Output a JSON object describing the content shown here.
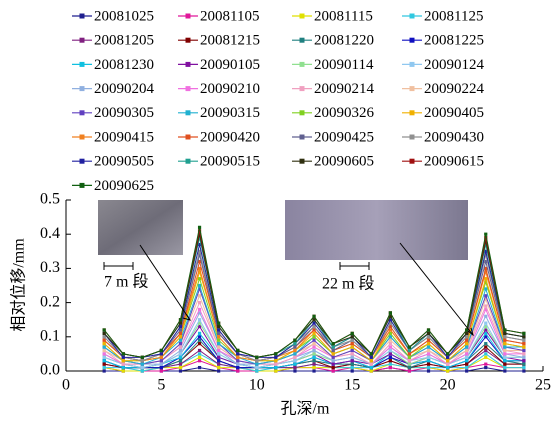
{
  "chart_data": {
    "type": "line",
    "x_label": "孔深/m",
    "y_label": "相对位移/mm",
    "annotations": [
      "7 m 段",
      "22 m 段"
    ],
    "x": [
      2,
      3,
      4,
      5,
      6,
      7,
      8,
      9,
      10,
      11,
      12,
      13,
      14,
      15,
      16,
      17,
      18,
      19,
      20,
      21,
      22,
      23,
      24
    ],
    "xlim": [
      0,
      25
    ],
    "xticks": [
      0,
      5,
      10,
      15,
      20,
      25
    ],
    "ylim": [
      0,
      0.5
    ],
    "yticks": [
      {
        "value": 0,
        "label": "0.0"
      },
      0.1,
      0.2,
      0.3,
      0.4,
      0.5
    ],
    "series": [
      {
        "name": "20081025",
        "color": "#1f1f8f",
        "values": [
          0,
          0,
          0,
          0,
          0,
          0.01,
          0,
          0,
          0,
          0,
          0,
          0,
          0,
          0,
          0,
          0.01,
          0,
          0,
          0,
          0,
          0.01,
          0,
          0
        ]
      },
      {
        "name": "20081105",
        "color": "#e0189a",
        "values": [
          0.01,
          0,
          0,
          0,
          0.01,
          0.03,
          0.01,
          0,
          0,
          0,
          0.01,
          0.01,
          0,
          0.01,
          0,
          0.01,
          0,
          0.01,
          0,
          0.01,
          0.02,
          0.01,
          0.01
        ]
      },
      {
        "name": "20081115",
        "color": "#e0e000",
        "values": [
          0.01,
          0,
          0,
          0.01,
          0.01,
          0.04,
          0.01,
          0.01,
          0,
          0,
          0.01,
          0.01,
          0.01,
          0.01,
          0,
          0.02,
          0.01,
          0.01,
          0,
          0.01,
          0.04,
          0.01,
          0.01
        ]
      },
      {
        "name": "20081125",
        "color": "#30c8e0",
        "values": [
          0.01,
          0.01,
          0,
          0.01,
          0.02,
          0.05,
          0.02,
          0.01,
          0,
          0.01,
          0.01,
          0.02,
          0.01,
          0.01,
          0.01,
          0.02,
          0.01,
          0.01,
          0.01,
          0.01,
          0.05,
          0.01,
          0.01
        ]
      },
      {
        "name": "20081205",
        "color": "#802080",
        "values": [
          0.02,
          0.01,
          0.01,
          0.01,
          0.02,
          0.06,
          0.02,
          0.01,
          0.01,
          0.01,
          0.01,
          0.02,
          0.01,
          0.02,
          0.01,
          0.03,
          0.01,
          0.02,
          0.01,
          0.02,
          0.06,
          0.02,
          0.02
        ]
      },
      {
        "name": "20081215",
        "color": "#800000",
        "values": [
          0.02,
          0.01,
          0.01,
          0.01,
          0.03,
          0.08,
          0.03,
          0.01,
          0.01,
          0.01,
          0.02,
          0.03,
          0.01,
          0.02,
          0.01,
          0.03,
          0.01,
          0.02,
          0.01,
          0.02,
          0.07,
          0.02,
          0.02
        ]
      },
      {
        "name": "20081220",
        "color": "#208080",
        "values": [
          0.03,
          0.01,
          0.01,
          0.01,
          0.03,
          0.09,
          0.03,
          0.01,
          0.01,
          0.01,
          0.02,
          0.03,
          0.02,
          0.02,
          0.01,
          0.04,
          0.01,
          0.03,
          0.01,
          0.03,
          0.08,
          0.03,
          0.02
        ]
      },
      {
        "name": "20081225",
        "color": "#1010c0",
        "values": [
          0.03,
          0.01,
          0.01,
          0.01,
          0.04,
          0.1,
          0.03,
          0.01,
          0.01,
          0.01,
          0.02,
          0.04,
          0.02,
          0.03,
          0.01,
          0.04,
          0.02,
          0.03,
          0.01,
          0.03,
          0.1,
          0.03,
          0.03
        ]
      },
      {
        "name": "20081230",
        "color": "#10c0e0",
        "values": [
          0.03,
          0.01,
          0.01,
          0.02,
          0.04,
          0.11,
          0.04,
          0.02,
          0.01,
          0.01,
          0.02,
          0.04,
          0.02,
          0.03,
          0.01,
          0.05,
          0.02,
          0.03,
          0.01,
          0.03,
          0.11,
          0.03,
          0.03
        ]
      },
      {
        "name": "20090105",
        "color": "#8010a0",
        "values": [
          0.04,
          0.02,
          0.01,
          0.02,
          0.05,
          0.13,
          0.04,
          0.02,
          0.01,
          0.02,
          0.03,
          0.05,
          0.02,
          0.03,
          0.02,
          0.05,
          0.02,
          0.04,
          0.02,
          0.04,
          0.12,
          0.04,
          0.03
        ]
      },
      {
        "name": "20090114",
        "color": "#90e090",
        "values": [
          0.04,
          0.02,
          0.01,
          0.02,
          0.05,
          0.14,
          0.05,
          0.02,
          0.01,
          0.02,
          0.03,
          0.05,
          0.03,
          0.04,
          0.02,
          0.06,
          0.02,
          0.04,
          0.02,
          0.04,
          0.13,
          0.04,
          0.04
        ]
      },
      {
        "name": "20090124",
        "color": "#90c8f0",
        "values": [
          0.04,
          0.02,
          0.01,
          0.02,
          0.05,
          0.15,
          0.05,
          0.02,
          0.01,
          0.02,
          0.03,
          0.06,
          0.03,
          0.04,
          0.02,
          0.06,
          0.03,
          0.04,
          0.02,
          0.04,
          0.14,
          0.04,
          0.04
        ]
      },
      {
        "name": "20090204",
        "color": "#90b0e0",
        "values": [
          0.05,
          0.02,
          0.02,
          0.02,
          0.06,
          0.17,
          0.06,
          0.02,
          0.02,
          0.02,
          0.04,
          0.06,
          0.03,
          0.04,
          0.02,
          0.07,
          0.03,
          0.05,
          0.02,
          0.05,
          0.16,
          0.05,
          0.04
        ]
      },
      {
        "name": "20090210",
        "color": "#f070e0",
        "values": [
          0.05,
          0.02,
          0.02,
          0.03,
          0.07,
          0.18,
          0.06,
          0.03,
          0.02,
          0.02,
          0.04,
          0.07,
          0.04,
          0.05,
          0.02,
          0.07,
          0.03,
          0.05,
          0.02,
          0.05,
          0.18,
          0.05,
          0.05
        ]
      },
      {
        "name": "20090214",
        "color": "#f0a0c0",
        "values": [
          0.06,
          0.02,
          0.02,
          0.03,
          0.07,
          0.2,
          0.07,
          0.03,
          0.02,
          0.02,
          0.04,
          0.08,
          0.04,
          0.05,
          0.02,
          0.08,
          0.03,
          0.06,
          0.02,
          0.06,
          0.19,
          0.06,
          0.05
        ]
      },
      {
        "name": "20090224",
        "color": "#f0c0a0",
        "values": [
          0.06,
          0.03,
          0.02,
          0.03,
          0.08,
          0.22,
          0.07,
          0.03,
          0.02,
          0.03,
          0.05,
          0.08,
          0.04,
          0.06,
          0.03,
          0.09,
          0.04,
          0.06,
          0.03,
          0.06,
          0.21,
          0.06,
          0.06
        ]
      },
      {
        "name": "20090305",
        "color": "#6040c0",
        "values": [
          0.07,
          0.03,
          0.02,
          0.03,
          0.08,
          0.24,
          0.08,
          0.03,
          0.02,
          0.03,
          0.05,
          0.09,
          0.04,
          0.06,
          0.03,
          0.1,
          0.04,
          0.07,
          0.03,
          0.07,
          0.22,
          0.07,
          0.06
        ]
      },
      {
        "name": "20090315",
        "color": "#20b0d0",
        "values": [
          0.07,
          0.03,
          0.02,
          0.04,
          0.09,
          0.25,
          0.08,
          0.04,
          0.02,
          0.03,
          0.05,
          0.1,
          0.05,
          0.07,
          0.03,
          0.1,
          0.04,
          0.07,
          0.03,
          0.07,
          0.24,
          0.07,
          0.07
        ]
      },
      {
        "name": "20090326",
        "color": "#80d020",
        "values": [
          0.08,
          0.03,
          0.03,
          0.04,
          0.1,
          0.27,
          0.09,
          0.04,
          0.03,
          0.03,
          0.06,
          0.1,
          0.05,
          0.07,
          0.03,
          0.11,
          0.04,
          0.08,
          0.03,
          0.08,
          0.26,
          0.08,
          0.07
        ]
      },
      {
        "name": "20090405",
        "color": "#f0b000",
        "values": [
          0.08,
          0.03,
          0.03,
          0.04,
          0.1,
          0.29,
          0.1,
          0.04,
          0.03,
          0.03,
          0.06,
          0.11,
          0.05,
          0.07,
          0.03,
          0.12,
          0.05,
          0.08,
          0.03,
          0.08,
          0.27,
          0.08,
          0.07
        ]
      },
      {
        "name": "20090415",
        "color": "#f08020",
        "values": [
          0.09,
          0.04,
          0.03,
          0.04,
          0.11,
          0.3,
          0.1,
          0.04,
          0.03,
          0.04,
          0.06,
          0.12,
          0.06,
          0.08,
          0.04,
          0.12,
          0.05,
          0.09,
          0.04,
          0.09,
          0.29,
          0.09,
          0.08
        ]
      },
      {
        "name": "20090420",
        "color": "#e05020",
        "values": [
          0.09,
          0.04,
          0.03,
          0.05,
          0.11,
          0.32,
          0.11,
          0.05,
          0.03,
          0.04,
          0.07,
          0.12,
          0.06,
          0.08,
          0.04,
          0.13,
          0.05,
          0.09,
          0.04,
          0.09,
          0.3,
          0.09,
          0.08
        ]
      },
      {
        "name": "20090425",
        "color": "#606090",
        "values": [
          0.1,
          0.04,
          0.03,
          0.05,
          0.12,
          0.34,
          0.11,
          0.05,
          0.03,
          0.04,
          0.07,
          0.13,
          0.06,
          0.09,
          0.04,
          0.14,
          0.06,
          0.1,
          0.04,
          0.1,
          0.32,
          0.1,
          0.09
        ]
      },
      {
        "name": "20090430",
        "color": "#909090",
        "values": [
          0.1,
          0.04,
          0.03,
          0.05,
          0.13,
          0.35,
          0.12,
          0.05,
          0.03,
          0.04,
          0.08,
          0.13,
          0.07,
          0.09,
          0.04,
          0.14,
          0.06,
          0.1,
          0.04,
          0.1,
          0.34,
          0.1,
          0.09
        ]
      },
      {
        "name": "20090505",
        "color": "#2020a0",
        "values": [
          0.11,
          0.04,
          0.04,
          0.05,
          0.13,
          0.37,
          0.12,
          0.05,
          0.04,
          0.04,
          0.08,
          0.14,
          0.07,
          0.1,
          0.04,
          0.15,
          0.06,
          0.11,
          0.04,
          0.11,
          0.35,
          0.11,
          0.1
        ]
      },
      {
        "name": "20090515",
        "color": "#20a090",
        "values": [
          0.11,
          0.05,
          0.04,
          0.06,
          0.14,
          0.39,
          0.13,
          0.06,
          0.04,
          0.05,
          0.08,
          0.15,
          0.07,
          0.1,
          0.05,
          0.16,
          0.06,
          0.11,
          0.05,
          0.11,
          0.37,
          0.11,
          0.1
        ]
      },
      {
        "name": "20090605",
        "color": "#303010",
        "values": [
          0.11,
          0.05,
          0.04,
          0.06,
          0.14,
          0.4,
          0.13,
          0.06,
          0.04,
          0.05,
          0.09,
          0.15,
          0.08,
          0.1,
          0.05,
          0.16,
          0.07,
          0.11,
          0.05,
          0.11,
          0.38,
          0.11,
          0.1
        ]
      },
      {
        "name": "20090615",
        "color": "#a01010",
        "values": [
          0.12,
          0.05,
          0.04,
          0.06,
          0.15,
          0.41,
          0.14,
          0.06,
          0.04,
          0.05,
          0.09,
          0.16,
          0.08,
          0.11,
          0.05,
          0.17,
          0.07,
          0.12,
          0.05,
          0.12,
          0.39,
          0.12,
          0.11
        ]
      },
      {
        "name": "20090625",
        "color": "#106010",
        "values": [
          0.12,
          0.05,
          0.04,
          0.06,
          0.15,
          0.42,
          0.14,
          0.06,
          0.04,
          0.05,
          0.09,
          0.16,
          0.08,
          0.11,
          0.05,
          0.17,
          0.07,
          0.12,
          0.05,
          0.12,
          0.4,
          0.12,
          0.11
        ]
      }
    ]
  }
}
